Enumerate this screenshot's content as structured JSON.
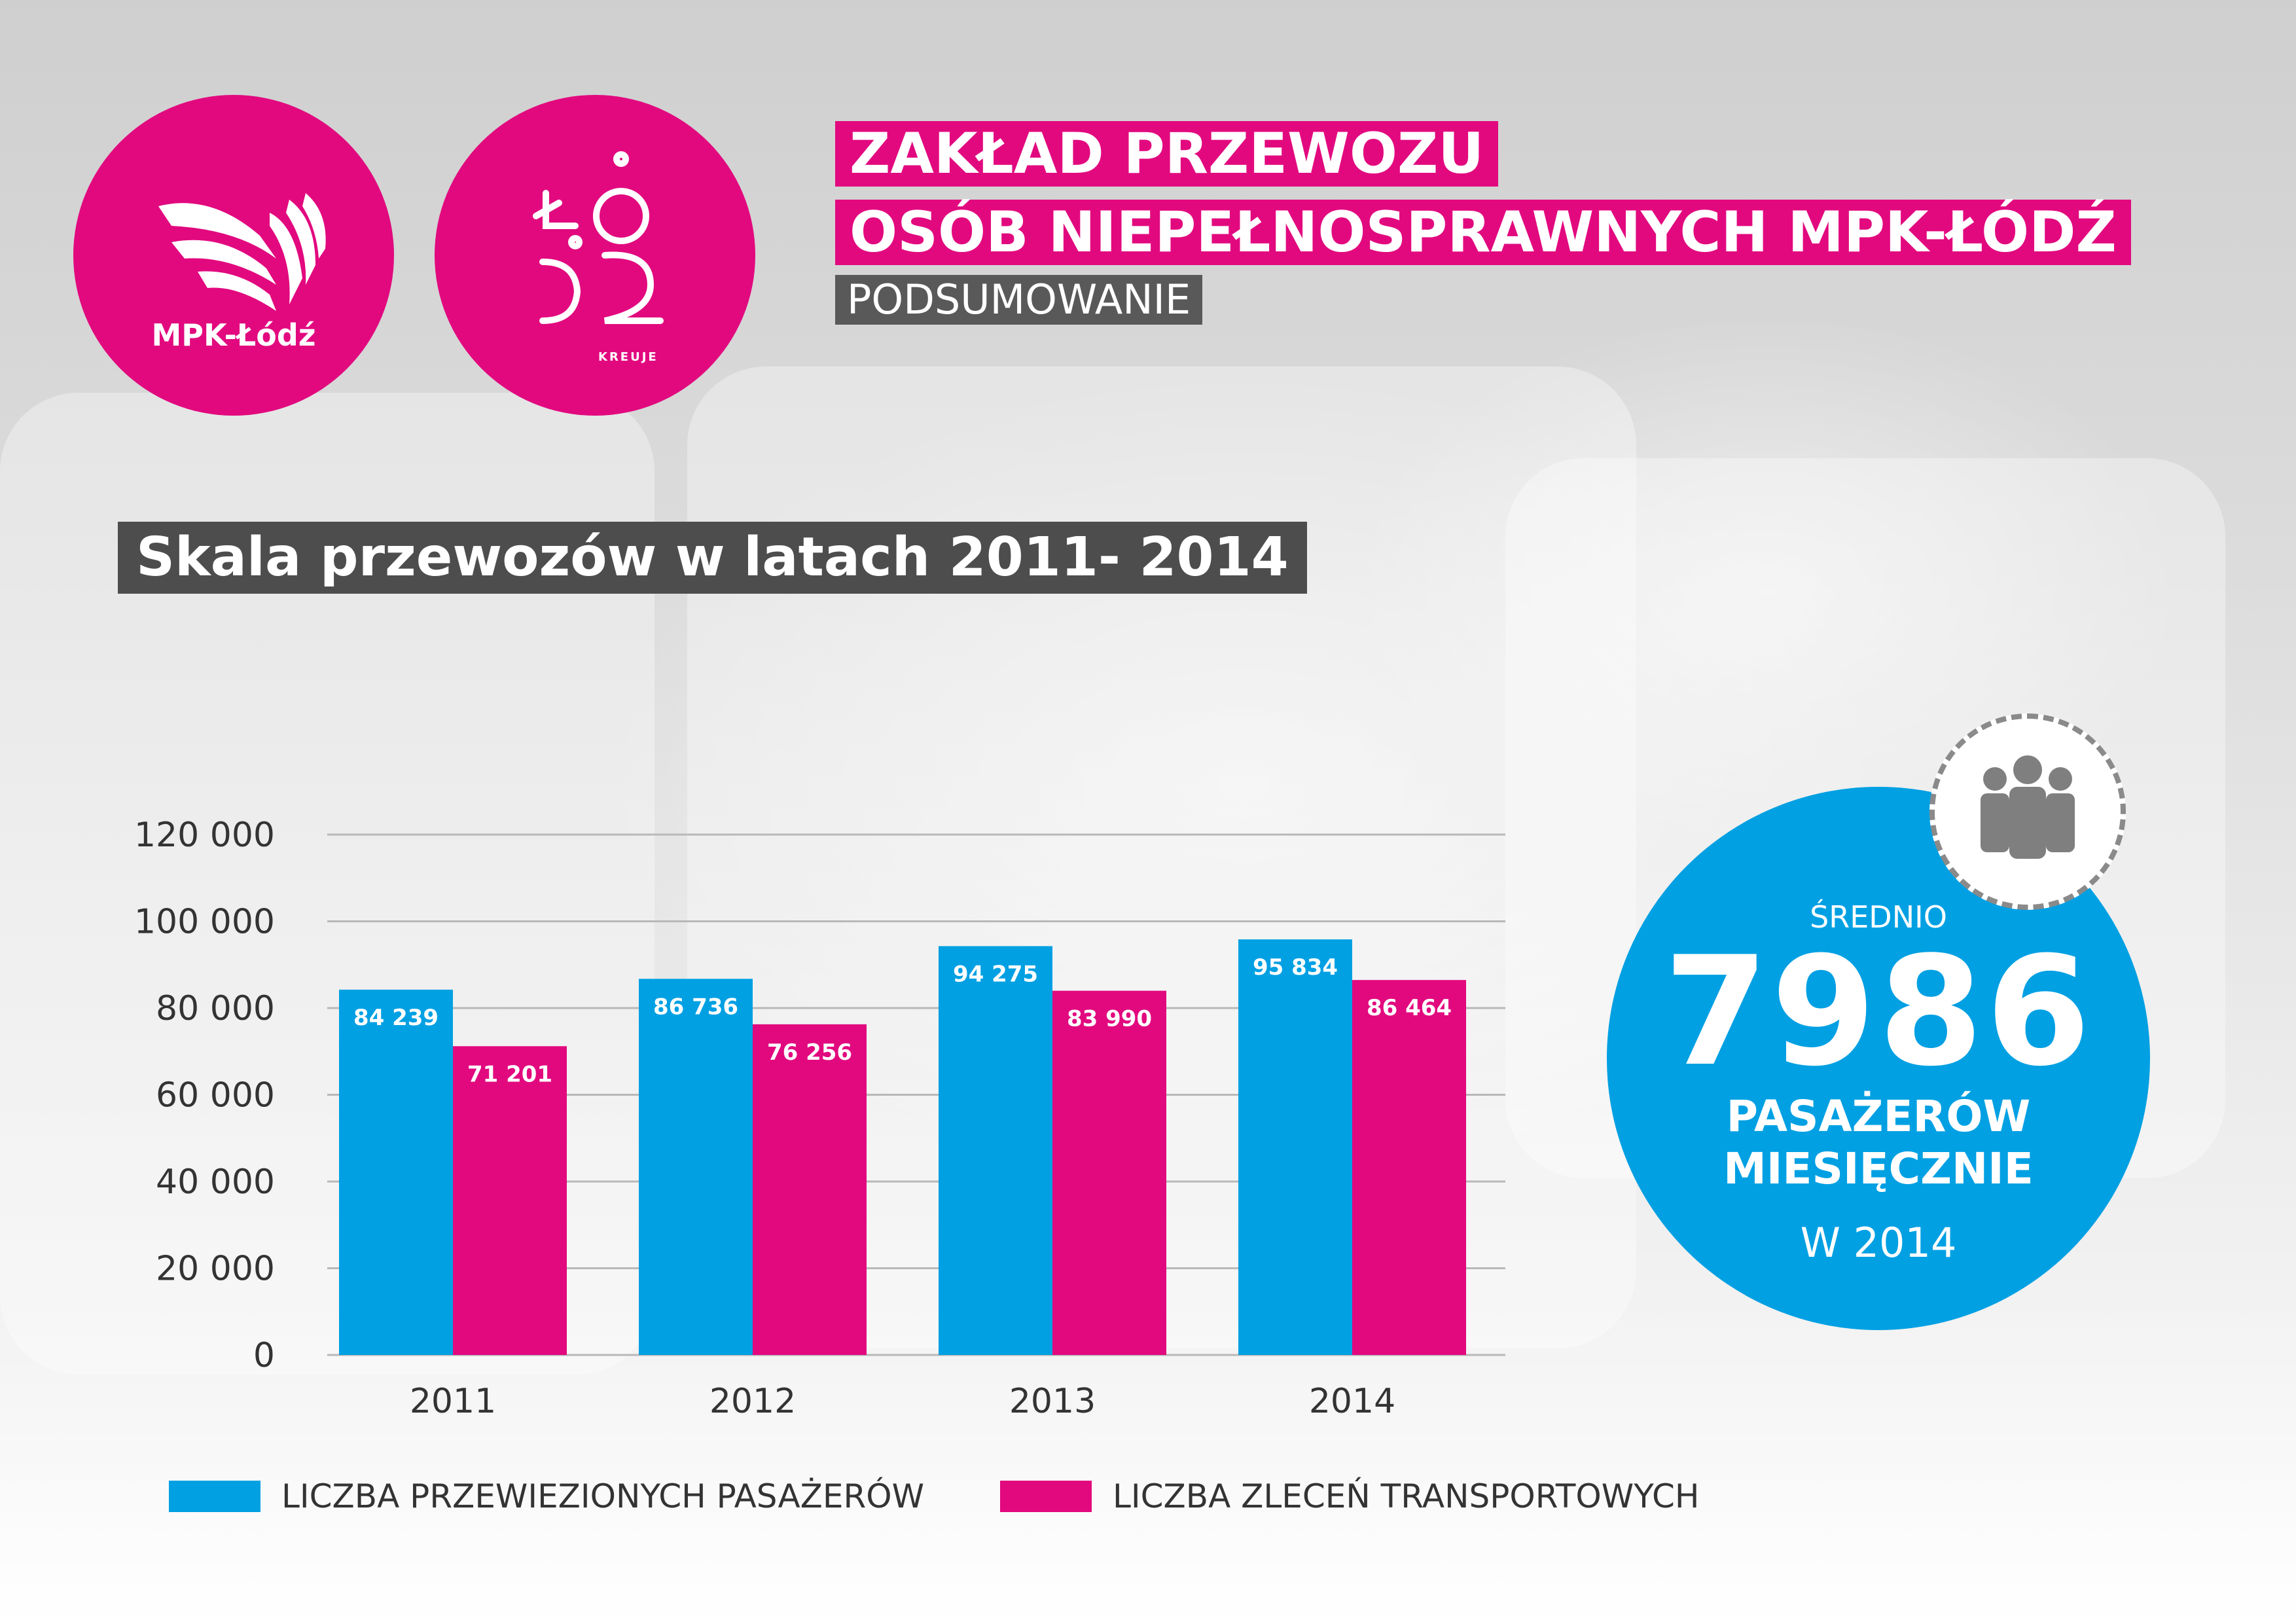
{
  "logos": {
    "mpk_label": "MPK-Łódź",
    "lodz_label": "KREUJE"
  },
  "header": {
    "title_line1": "ZAKŁAD PRZEWOZU",
    "title_line2": "OSÓB NIEPEŁNOSPRAWNYCH MPK-ŁÓDŹ",
    "subtitle": "PODSUMOWANIE"
  },
  "colors": {
    "magenta": "#e2097f",
    "blue": "#00a0e3",
    "dark_gray": "#4d4d4d"
  },
  "stat": {
    "label_top": "ŚREDNIO",
    "value": "7986",
    "label_line1": "PASAŻERÓW",
    "label_line2": "MIESIĘCZNIE",
    "label_bottom": "W 2014",
    "icon": "people-group-icon"
  },
  "chart_data": {
    "type": "bar",
    "title": "Skala przewozów w latach 2011- 2014",
    "categories": [
      "2011",
      "2012",
      "2013",
      "2014"
    ],
    "series": [
      {
        "name": "LICZBA PRZEWIEZIONYCH PASAŻERÓW",
        "color": "#00a0e3",
        "values": [
          84239,
          86736,
          94275,
          95834
        ],
        "labels": [
          "84 239",
          "86 736",
          "94 275",
          "95 834"
        ]
      },
      {
        "name": "LICZBA ZLECEŃ TRANSPORTOWYCH",
        "color": "#e2097f",
        "values": [
          71201,
          76256,
          83990,
          86464
        ],
        "labels": [
          "71 201",
          "76 256",
          "83 990",
          "86 464"
        ]
      }
    ],
    "y_ticks": [
      "0",
      "20 000",
      "40 000",
      "60 000",
      "80 000",
      "100 000",
      "120 000"
    ],
    "ylim": [
      0,
      120000
    ],
    "grid": true,
    "legend": "bottom"
  }
}
